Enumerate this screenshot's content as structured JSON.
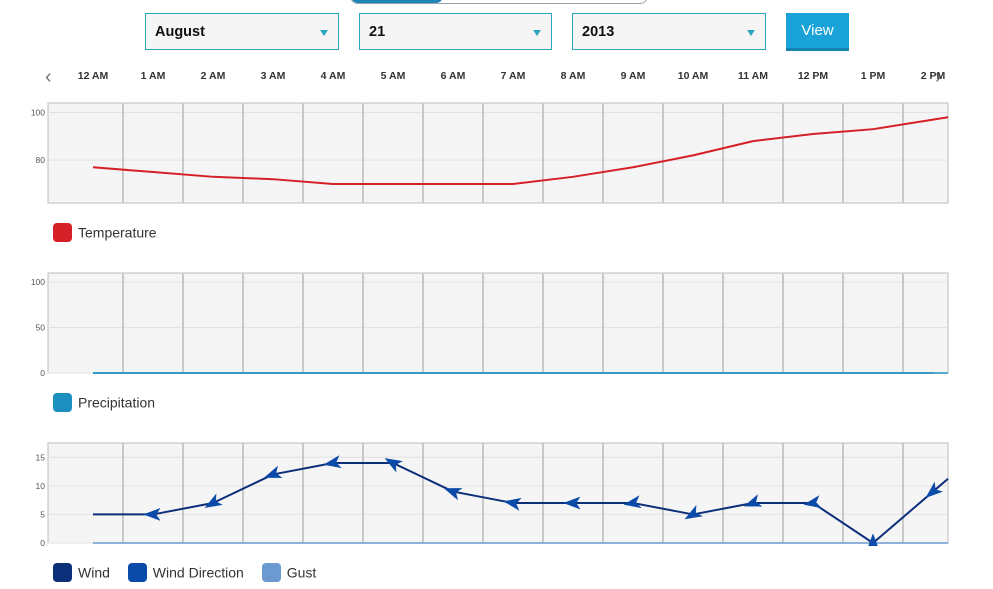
{
  "controls": {
    "month": "August",
    "day": "21",
    "year": "2013",
    "view_label": "View",
    "prev_arrow": "‹",
    "next_arrow": "›"
  },
  "hours": [
    "12 AM",
    "1 AM",
    "2 AM",
    "3 AM",
    "4 AM",
    "5 AM",
    "6 AM",
    "7 AM",
    "8 AM",
    "9 AM",
    "10 AM",
    "11 AM",
    "12 PM",
    "1 PM",
    "2 PM"
  ],
  "colors": {
    "accent": "#1aa3d8",
    "temperature": "#d62028",
    "precipitation": "#1b8fbd",
    "wind": "#0c2f7a",
    "wind_direction": "#0a4aa8",
    "gust": "#6b9ad0",
    "plot_bg": "#f5f5f5",
    "grid": "#c8c8c8"
  },
  "chart_data": [
    {
      "type": "line",
      "x": [
        "12 AM",
        "1 AM",
        "2 AM",
        "3 AM",
        "4 AM",
        "5 AM",
        "6 AM",
        "7 AM",
        "8 AM",
        "9 AM",
        "10 AM",
        "11 AM",
        "12 PM",
        "1 PM",
        "2 PM"
      ],
      "series": [
        {
          "name": "Temperature",
          "values": [
            77,
            75,
            73,
            72,
            70,
            70,
            70,
            70,
            73,
            77,
            82,
            88,
            91,
            93,
            97
          ]
        }
      ],
      "yticks": [
        80,
        100
      ],
      "ylim": [
        62,
        104
      ],
      "grid": true,
      "legend": "bottom-left"
    },
    {
      "type": "line",
      "x": [
        "12 AM",
        "1 AM",
        "2 AM",
        "3 AM",
        "4 AM",
        "5 AM",
        "6 AM",
        "7 AM",
        "8 AM",
        "9 AM",
        "10 AM",
        "11 AM",
        "12 PM",
        "1 PM",
        "2 PM"
      ],
      "series": [
        {
          "name": "Precipitation",
          "values": [
            0,
            0,
            0,
            0,
            0,
            0,
            0,
            0,
            0,
            0,
            0,
            0,
            0,
            0,
            0
          ]
        }
      ],
      "yticks": [
        0,
        50,
        100
      ],
      "ylim": [
        0,
        110
      ],
      "grid": true,
      "legend": "bottom-left"
    },
    {
      "type": "line",
      "x": [
        "12 AM",
        "1 AM",
        "2 AM",
        "3 AM",
        "4 AM",
        "5 AM",
        "6 AM",
        "7 AM",
        "8 AM",
        "9 AM",
        "10 AM",
        "11 AM",
        "12 PM",
        "1 PM",
        "2 PM"
      ],
      "series": [
        {
          "name": "Wind",
          "values": [
            5,
            5,
            7,
            12,
            14,
            14,
            9,
            7,
            7,
            7,
            5,
            7,
            7,
            0,
            9
          ]
        },
        {
          "name": "Wind Direction",
          "values": [
            null,
            270,
            240,
            250,
            260,
            300,
            290,
            280,
            270,
            260,
            240,
            250,
            260,
            0,
            230
          ]
        },
        {
          "name": "Gust",
          "values": [
            0,
            0,
            0,
            0,
            0,
            0,
            0,
            0,
            0,
            0,
            0,
            0,
            0,
            0,
            0
          ]
        }
      ],
      "yticks": [
        0,
        5,
        10,
        15
      ],
      "ylim": [
        0,
        17.5
      ],
      "grid": true,
      "legend": "bottom-left"
    }
  ]
}
